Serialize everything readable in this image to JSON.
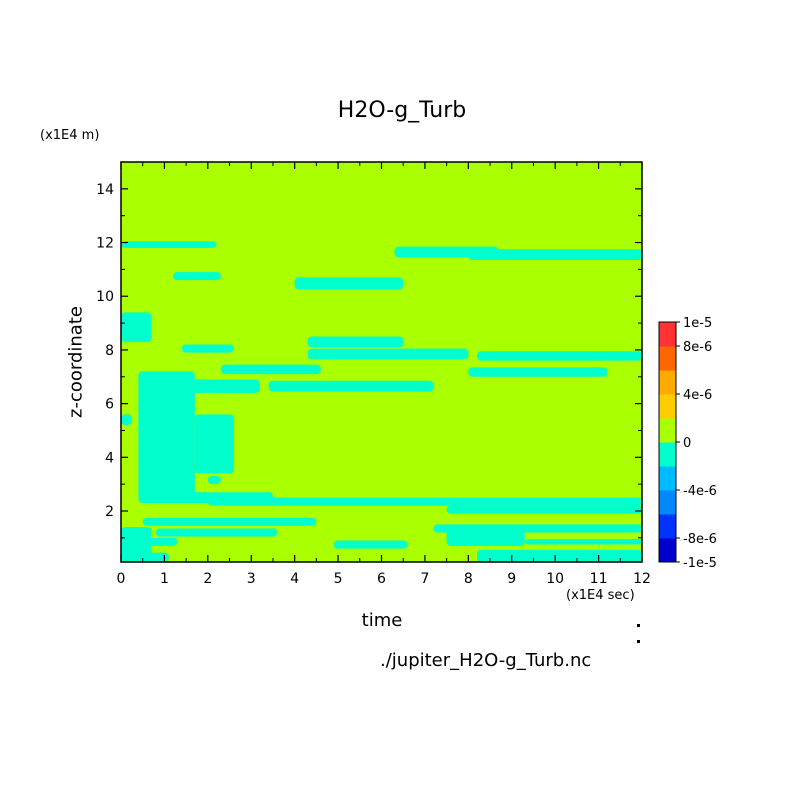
{
  "chart_data": {
    "type": "heatmap",
    "title": "H2O-g_Turb",
    "xlabel": "time",
    "ylabel": "z-coordinate",
    "x_unit": "(x1E4 sec)",
    "y_unit": "(x1E4 m)",
    "xlim": [
      0,
      12
    ],
    "ylim": [
      0.1,
      15
    ],
    "x_ticks": [
      "0",
      "1",
      "2",
      "3",
      "4",
      "5",
      "6",
      "7",
      "8",
      "9",
      "10",
      "11",
      "12"
    ],
    "y_ticks": [
      "2",
      "4",
      "6",
      "8",
      "10",
      "12",
      "14"
    ],
    "x_tick_values": [
      0,
      1,
      2,
      3,
      4,
      5,
      6,
      7,
      8,
      9,
      10,
      11,
      12
    ],
    "y_tick_values": [
      2,
      4,
      6,
      8,
      10,
      12,
      14
    ],
    "background_level": "0",
    "background_color": "#aaff00",
    "negative_color": "#00ffcc",
    "negative_bands": [
      {
        "t0": 0.0,
        "t1": 2.2,
        "z0": 11.8,
        "z1": 12.05
      },
      {
        "t0": 8.0,
        "t1": 12.0,
        "z0": 11.35,
        "z1": 11.75
      },
      {
        "t0": 6.3,
        "t1": 8.7,
        "z0": 11.45,
        "z1": 11.85
      },
      {
        "t0": 4.0,
        "t1": 6.5,
        "z0": 10.25,
        "z1": 10.7
      },
      {
        "t0": 1.2,
        "t1": 2.3,
        "z0": 10.6,
        "z1": 10.9
      },
      {
        "t0": 0.0,
        "t1": 0.7,
        "z0": 8.3,
        "z1": 9.4
      },
      {
        "t0": 1.4,
        "t1": 2.6,
        "z0": 7.9,
        "z1": 8.2
      },
      {
        "t0": 4.3,
        "t1": 6.5,
        "z0": 8.1,
        "z1": 8.5
      },
      {
        "t0": 4.3,
        "t1": 8.0,
        "z0": 7.65,
        "z1": 8.05
      },
      {
        "t0": 8.2,
        "t1": 12.0,
        "z0": 7.6,
        "z1": 7.95
      },
      {
        "t0": 2.3,
        "t1": 4.6,
        "z0": 7.1,
        "z1": 7.45
      },
      {
        "t0": 8.0,
        "t1": 11.2,
        "z0": 7.0,
        "z1": 7.35
      },
      {
        "t0": 1.5,
        "t1": 3.2,
        "z0": 6.4,
        "z1": 6.9
      },
      {
        "t0": 3.4,
        "t1": 7.2,
        "z0": 6.45,
        "z1": 6.85
      },
      {
        "t0": 0.4,
        "t1": 1.7,
        "z0": 2.3,
        "z1": 7.2
      },
      {
        "t0": 1.7,
        "t1": 2.6,
        "z0": 3.4,
        "z1": 5.6
      },
      {
        "t0": 0.0,
        "t1": 0.25,
        "z0": 5.2,
        "z1": 5.6
      },
      {
        "t0": 1.5,
        "t1": 3.5,
        "z0": 2.3,
        "z1": 2.7
      },
      {
        "t0": 2.0,
        "t1": 12.0,
        "z0": 2.2,
        "z1": 2.5
      },
      {
        "t0": 7.5,
        "t1": 12.0,
        "z0": 1.9,
        "z1": 2.2
      },
      {
        "t0": 0.5,
        "t1": 4.5,
        "z0": 1.45,
        "z1": 1.75
      },
      {
        "t0": 0.8,
        "t1": 3.6,
        "z0": 1.05,
        "z1": 1.35
      },
      {
        "t0": 0.3,
        "t1": 1.3,
        "z0": 0.7,
        "z1": 1.0
      },
      {
        "t0": 4.9,
        "t1": 6.6,
        "z0": 0.6,
        "z1": 0.9
      },
      {
        "t0": 7.2,
        "t1": 12.0,
        "z0": 1.2,
        "z1": 1.5
      },
      {
        "t0": 7.5,
        "t1": 9.3,
        "z0": 0.7,
        "z1": 1.3
      },
      {
        "t0": 9.3,
        "t1": 12.0,
        "z0": 0.75,
        "z1": 0.95
      },
      {
        "t0": 8.2,
        "t1": 12.0,
        "z0": 0.1,
        "z1": 0.55
      },
      {
        "t0": 0.0,
        "t1": 1.1,
        "z0": 0.1,
        "z1": 0.45
      },
      {
        "t0": 0.0,
        "t1": 0.7,
        "z0": 0.1,
        "z1": 1.4
      },
      {
        "t0": 2.0,
        "t1": 2.3,
        "z0": 3.0,
        "z1": 3.3
      }
    ],
    "colorbar": {
      "levels": [
        "-1e-5",
        "-8e-6",
        "-6e-6",
        "-4e-6",
        "-2e-6",
        "0",
        "2e-6",
        "4e-6",
        "6e-6",
        "8e-6",
        "1e-5"
      ],
      "labels": [
        "1e-5",
        "8e-6",
        "4e-6",
        "0",
        "-4e-6",
        "-8e-6",
        "-1e-5"
      ],
      "label_values": [
        1e-05,
        8e-06,
        4e-06,
        0,
        -4e-06,
        -8e-06,
        -1e-05
      ],
      "colors_bottom_to_top": [
        "#0000cc",
        "#0033ff",
        "#0088ff",
        "#00bbff",
        "#00ffcc",
        "#aaff00",
        "#ffcc00",
        "#ffaa00",
        "#ff6600",
        "#ff3333"
      ]
    }
  },
  "footer": {
    "filename": "./jupiter_H2O-g_Turb.nc"
  }
}
